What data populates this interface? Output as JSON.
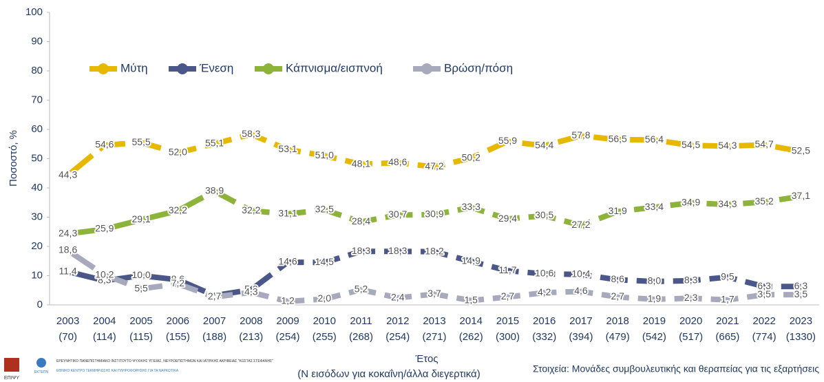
{
  "chart_data": {
    "type": "line",
    "y_label": "Ποσοστό, %",
    "x_label": "Έτος",
    "x_sublabel": "(Ν εισόδων για κοκαΐνη/άλλα διεγερτικά)",
    "source": "Στοιχεία: Μονάδες συμβουλευτικής και θεραπείας για τις εξαρτήσεις",
    "categories": [
      "2003",
      "2004",
      "2005",
      "2006",
      "2007",
      "2008",
      "2009",
      "2010",
      "2011",
      "2012",
      "2013",
      "2014",
      "2015",
      "2016",
      "2017",
      "2018",
      "2019",
      "2020",
      "2021",
      "2022",
      "2023"
    ],
    "category_notes": [
      "(70)",
      "(114)",
      "(115)",
      "(155)",
      "(188)",
      "(213)",
      "(254)",
      "(255)",
      "(268)",
      "(254)",
      "(271)",
      "(262)",
      "(300)",
      "(332)",
      "(394)",
      "(479)",
      "(542)",
      "(517)",
      "(665)",
      "(774)",
      "(1330)"
    ],
    "ylim": [
      0,
      100
    ],
    "yticks": [
      0,
      10,
      20,
      30,
      40,
      50,
      60,
      70,
      80,
      90,
      100
    ],
    "legend": "top-left",
    "series": [
      {
        "name": "Μύτη",
        "color": "#e6b800",
        "values": [
          44.3,
          54.6,
          55.5,
          52.0,
          55.1,
          58.3,
          53.1,
          51.0,
          48.1,
          48.6,
          47.2,
          50.2,
          55.9,
          54.4,
          57.8,
          56.5,
          56.4,
          54.5,
          54.3,
          54.7,
          52.5
        ],
        "value_labels": [
          "44,3",
          "54,6",
          "55,5",
          "52,0",
          "55,1",
          "58,3",
          "53,1",
          "51,0",
          "48,1",
          "48,6",
          "47,2",
          "50,2",
          "55,9",
          "54,4",
          "57,8",
          "56,5",
          "56,4",
          "54,5",
          "54,3",
          "54,7",
          "52,5"
        ]
      },
      {
        "name": "Ένεση",
        "color": "#4b5789",
        "values": [
          11.4,
          8.3,
          10.0,
          8.6,
          3.2,
          5.2,
          14.6,
          14.5,
          18.3,
          18.3,
          18.2,
          14.9,
          11.7,
          10.6,
          10.4,
          8.6,
          8.0,
          8.3,
          9.5,
          6.3,
          6.3
        ],
        "value_labels": [
          "11,4",
          "8,3",
          "10,0",
          "8,6",
          "3,2",
          "5,2",
          "14,6",
          "14,5",
          "18,3",
          "18,3",
          "18,2",
          "14,9",
          "11,7",
          "10,6",
          "10,4",
          "8,6",
          "8,0",
          "8,3",
          "9,5",
          "6,3",
          "6,3"
        ]
      },
      {
        "name": "Κάπνισμα/εισπνοή",
        "color": "#8db33a",
        "values": [
          24.3,
          25.9,
          29.1,
          32.2,
          38.9,
          32.2,
          31.1,
          32.5,
          28.4,
          30.7,
          30.9,
          33.3,
          29.4,
          30.5,
          27.2,
          31.9,
          33.4,
          34.9,
          34.3,
          35.2,
          37.1
        ],
        "value_labels": [
          "24,3",
          "25,9",
          "29,1",
          "32,2",
          "38,9",
          "32,2",
          "31,1",
          "32,5",
          "28,4",
          "30,7",
          "30,9",
          "33,3",
          "29,4",
          "30,5",
          "27,2",
          "31,9",
          "33,4",
          "34,9",
          "34,3",
          "35,2",
          "37,1"
        ]
      },
      {
        "name": "Βρώση/πόση",
        "color": "#a7a9bd",
        "values": [
          18.6,
          10.2,
          5.5,
          7.2,
          2.7,
          4.3,
          1.2,
          2.0,
          5.2,
          2.4,
          3.7,
          1.5,
          2.7,
          4.2,
          4.6,
          2.7,
          1.9,
          2.3,
          1.7,
          3.5,
          3.5
        ],
        "value_labels": [
          "18,6",
          "10,2",
          "5,5",
          "7,2",
          "2,7",
          "4,3",
          "1,2",
          "2,0",
          "5,2",
          "2,4",
          "3,7",
          "1,5",
          "2,7",
          "4,2",
          "4,6",
          "2,7",
          "1,9",
          "2,3",
          "1,7",
          "3,5",
          "3,5"
        ]
      }
    ]
  },
  "logos": {
    "left_name": "ΕΠΙΨΥ",
    "institute": "ΕΡΕΥΝΗΤΙΚΟ ΠΑΝΕΠΙΣΤΗΜΙΑΚΟ ΙΝΣΤΙΤΟΥΤΟ ΨΥΧΙΚΗΣ ΥΓΙΕΙΑΣ, ΝΕΥΡΟΕΠΙΣΤΗΜΩΝ ΚΑΙ ΙΑΤΡΙΚΗΣ ΑΚΡΙΒΕΙΑΣ \"ΚΩΣΤΑΣ ΣΤΕΦΑΝΗΣ\"",
    "center_name": "ΕΚΤΕΠΝ",
    "center": "ΕΘΝΙΚΟ ΚΕΝΤΡΟ ΤΕΚΜΗΡΙΩΣΗΣ ΚΑΙ ΠΛΗΡΟΦΟΡΗΣΗΣ ΓΙΑ ΤΑ ΝΑΡΚΩΤΙΚΑ"
  }
}
